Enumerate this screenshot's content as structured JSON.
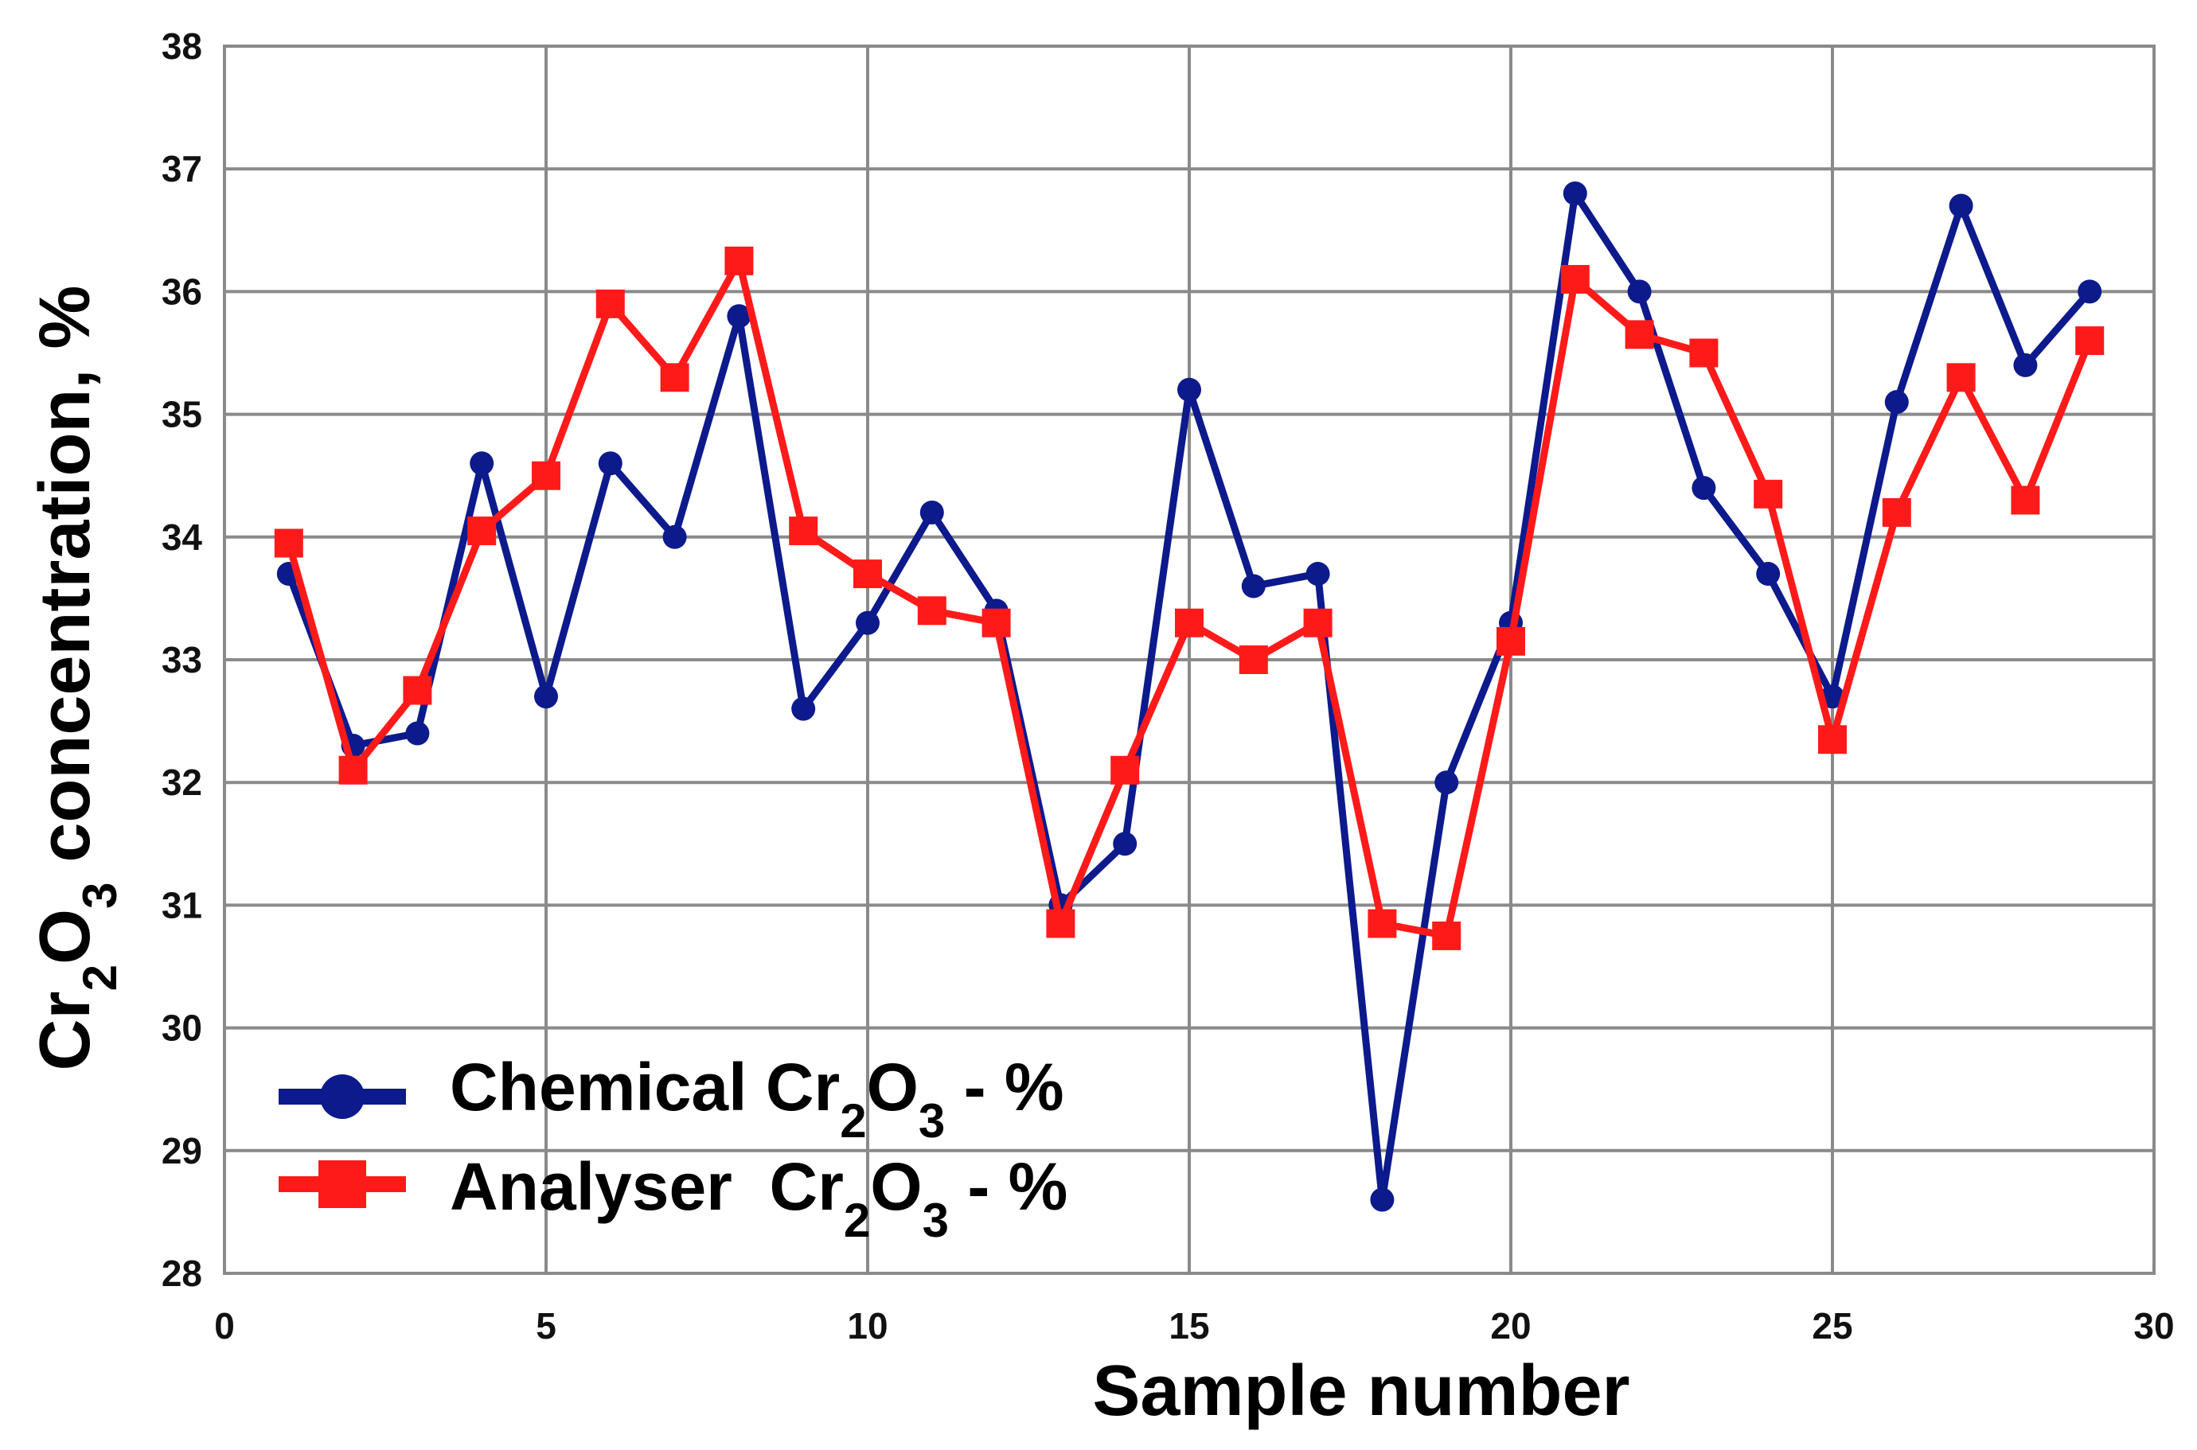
{
  "chart_data": {
    "type": "line",
    "xlabel": "Sample number",
    "ylabel": {
      "parts": [
        "Cr",
        "2",
        "O",
        "3",
        " concentration, %"
      ]
    },
    "xlim": [
      0,
      30
    ],
    "ylim": [
      28,
      38
    ],
    "xticks": [
      "0",
      "5",
      "10",
      "15",
      "20",
      "25",
      "30"
    ],
    "yticks": [
      "28",
      "29",
      "30",
      "31",
      "32",
      "33",
      "34",
      "35",
      "36",
      "37",
      "38"
    ],
    "grid": true,
    "legend_position": "bottom-left",
    "x": [
      1,
      2,
      3,
      4,
      5,
      6,
      7,
      8,
      9,
      10,
      11,
      12,
      13,
      14,
      15,
      16,
      17,
      18,
      19,
      20,
      21,
      22,
      23,
      24,
      25,
      26,
      27,
      28,
      29
    ],
    "series": [
      {
        "name": "Chemical Cr2O3 - %",
        "legend_parts": [
          "Chemical Cr",
          "2",
          "O",
          "3",
          " - %"
        ],
        "color": "#0d1a8c",
        "marker": "circle",
        "values": [
          33.7,
          32.3,
          32.4,
          34.6,
          32.7,
          34.6,
          34.0,
          35.8,
          32.6,
          33.3,
          34.2,
          33.4,
          31.0,
          31.5,
          35.2,
          33.6,
          33.7,
          28.6,
          32.0,
          33.3,
          36.8,
          36.0,
          34.4,
          33.7,
          32.7,
          35.1,
          36.7,
          35.4,
          36.0
        ]
      },
      {
        "name": "Analyser Cr2O3 - %",
        "legend_parts": [
          "Analyser  Cr",
          "2",
          "O",
          "3",
          " - %"
        ],
        "color": "#ff1a1a",
        "marker": "square",
        "values": [
          33.95,
          32.1,
          32.75,
          34.05,
          34.5,
          35.9,
          35.3,
          36.25,
          34.05,
          33.7,
          33.4,
          33.3,
          30.85,
          32.1,
          33.3,
          33.0,
          33.3,
          30.85,
          30.75,
          33.15,
          36.1,
          35.65,
          35.5,
          34.35,
          32.35,
          34.2,
          35.3,
          34.3,
          35.6
        ]
      }
    ]
  }
}
